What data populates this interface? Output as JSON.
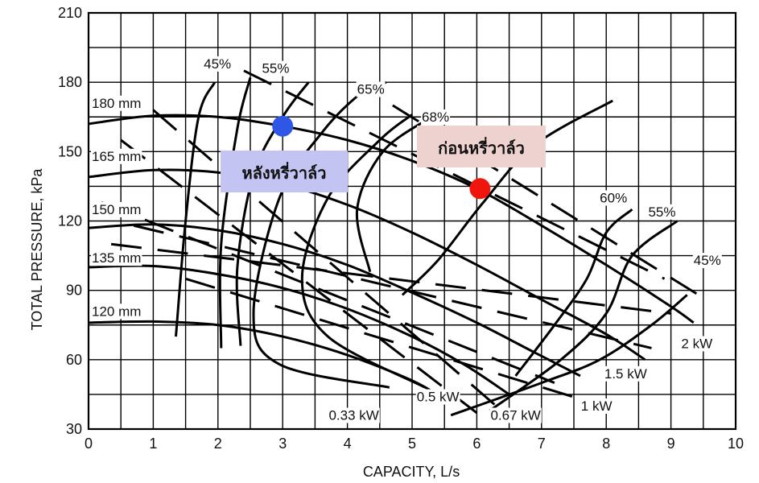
{
  "chart_data": {
    "type": "line",
    "xlabel": "CAPACITY, L/s",
    "ylabel": "TOTAL PRESSURE, kPa",
    "xlim": [
      0,
      10
    ],
    "ylim": [
      30,
      210
    ],
    "xticks": [
      "0",
      "1",
      "2",
      "3",
      "4",
      "5",
      "6",
      "7",
      "8",
      "9",
      "10"
    ],
    "yticks": [
      "30",
      "60",
      "90",
      "120",
      "150",
      "180",
      "210"
    ],
    "grid": true,
    "series": [
      {
        "name": "180 mm",
        "points": [
          [
            0,
            162
          ],
          [
            1,
            165.5
          ],
          [
            2,
            165
          ],
          [
            3,
            161
          ],
          [
            4,
            155
          ],
          [
            5,
            146
          ],
          [
            6,
            134
          ],
          [
            7,
            118
          ],
          [
            8,
            101
          ],
          [
            9,
            83
          ],
          [
            9.35,
            76
          ]
        ]
      },
      {
        "name": "165 mm",
        "points": [
          [
            0,
            139
          ],
          [
            1,
            142
          ],
          [
            2,
            141
          ],
          [
            3,
            136
          ],
          [
            4,
            127
          ],
          [
            5,
            115
          ],
          [
            6,
            101
          ],
          [
            7,
            86
          ],
          [
            8,
            71
          ],
          [
            8.6,
            60
          ]
        ]
      },
      {
        "name": "150 mm",
        "points": [
          [
            0,
            117
          ],
          [
            1,
            118.5
          ],
          [
            2,
            116
          ],
          [
            3,
            110
          ],
          [
            4,
            101
          ],
          [
            5,
            89
          ],
          [
            6,
            76
          ],
          [
            6.9,
            63
          ],
          [
            7.6,
            53
          ]
        ]
      },
      {
        "name": "135 mm",
        "points": [
          [
            0,
            100
          ],
          [
            1,
            100.5
          ],
          [
            2,
            97
          ],
          [
            3,
            91
          ],
          [
            4,
            82
          ],
          [
            5,
            70
          ],
          [
            5.8,
            58
          ],
          [
            6.5,
            45
          ]
        ]
      },
      {
        "name": "120 mm",
        "points": [
          [
            0,
            76
          ],
          [
            1,
            76.5
          ],
          [
            2,
            75
          ],
          [
            3,
            70
          ],
          [
            4,
            62
          ],
          [
            5,
            51
          ],
          [
            5.5,
            43
          ]
        ]
      }
    ],
    "efficiency_labels": [
      "45%",
      "55%",
      "65%",
      "68%",
      "60%",
      "55%",
      "45%"
    ],
    "power_labels": [
      "0.33 kW",
      "0.5 kW",
      "0.67 kW",
      "1 kW",
      "1.5 kW",
      "2 kW"
    ],
    "markers": [
      {
        "label": "หลังหรี่วาล์ว",
        "x": 3.0,
        "y": 161,
        "color": "#2f57e6",
        "label_bg": "#c3c4f2"
      },
      {
        "label": "ก่อนหรี่วาล์ว",
        "x": 6.05,
        "y": 134,
        "color": "#f0160e",
        "label_bg": "#eed2d0"
      }
    ]
  }
}
